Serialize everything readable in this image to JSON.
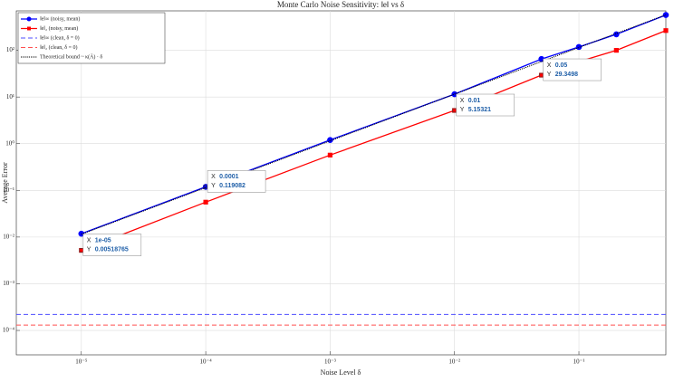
{
  "chart_data": {
    "type": "line",
    "title": "Monte Carlo Noise Sensitivity: ‖e‖ vs δ",
    "x_label": "Noise Level δ",
    "y_label": "Average Error",
    "x": [
      1e-05,
      0.0001,
      0.001,
      0.01,
      0.05,
      0.1,
      0.2,
      0.5
    ],
    "log_x": true,
    "log_y": true,
    "grid": true,
    "legend": "upper left",
    "xlim": [
      3e-06,
      0.5
    ],
    "ylim": [
      3e-05,
      700
    ],
    "xticks": [
      {
        "value": 1e-05,
        "label": "10⁻⁵"
      },
      {
        "value": 0.0001,
        "label": "10⁻⁴"
      },
      {
        "value": 0.001,
        "label": "10⁻³"
      },
      {
        "value": 0.01,
        "label": "10⁻²"
      },
      {
        "value": 0.1,
        "label": "10⁻¹"
      }
    ],
    "yticks": [
      {
        "value": 0.0001,
        "label": "10⁻⁴"
      },
      {
        "value": 0.001,
        "label": "10⁻³"
      },
      {
        "value": 0.01,
        "label": "10⁻²"
      },
      {
        "value": 0.1,
        "label": "10⁻¹"
      },
      {
        "value": 1,
        "label": "10⁰"
      },
      {
        "value": 10,
        "label": "10¹"
      },
      {
        "value": 100,
        "label": "10²"
      }
    ],
    "series": [
      {
        "name": "‖e‖∞ (noisy, mean)",
        "color": "#0000ff",
        "style": "solid",
        "marker": "circle",
        "values": [
          0.0118,
          0.119082,
          1.2,
          11.5,
          65,
          118,
          220,
          570
        ]
      },
      {
        "name": "‖e‖₂ (noisy, mean)",
        "color": "#ff0000",
        "style": "solid",
        "marker": "square",
        "values": [
          0.00518765,
          0.056,
          0.57,
          5.15321,
          29.3498,
          57,
          100,
          265
        ]
      },
      {
        "name": "‖e‖∞ (clean, δ = 0)",
        "color": "#4d4dff",
        "style": "dashed",
        "marker": "none",
        "x": [
          3e-06,
          0.5
        ],
        "values": [
          0.00022,
          0.00022
        ]
      },
      {
        "name": "‖e‖₂ (clean, δ = 0)",
        "color": "#ff5050",
        "style": "dashed",
        "marker": "none",
        "x": [
          3e-06,
          0.5
        ],
        "values": [
          0.00013,
          0.00013
        ]
      },
      {
        "name": "Theoretical bound ~ κ(Ā) · δ",
        "color": "#000000",
        "style": "dotted",
        "marker": "none",
        "values": [
          0.0115,
          0.115,
          1.15,
          11.5,
          57.5,
          115,
          230,
          575
        ]
      }
    ],
    "datatip_labels": [
      "X",
      "Y"
    ],
    "datatips": [
      {
        "x": "1e-05",
        "y": "0.00518765"
      },
      {
        "x": "0.0001",
        "y": "0.119082"
      },
      {
        "x": "0.01",
        "y": "5.15321"
      },
      {
        "x": "0.05",
        "y": "29.3498"
      }
    ]
  }
}
